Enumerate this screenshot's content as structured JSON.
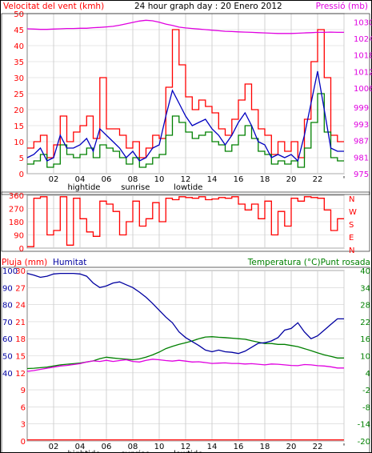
{
  "colors": {
    "background": "#ffffff",
    "grid": "#d0d0d0",
    "wind_gust": "#ff0000",
    "wind_avg": "#008000",
    "wind_mean": "#0000c0",
    "pressure": "#e000e0",
    "direction": "#ff0000",
    "rain": "#ff0000",
    "humidity": "#0000a0",
    "temperature": "#008000",
    "dewpoint": "#e000e0"
  },
  "chart_data": [
    {
      "type": "line",
      "title": "24 hour graph day : 20 Enero 2012",
      "ylabel_left": "Velocitat del vent (kmh)",
      "ylabel_right": "Pressió (mb)",
      "x_ticks": [
        "02",
        "04",
        "06",
        "08",
        "10",
        "12",
        "14",
        "16",
        "18",
        "20",
        "22",
        "'"
      ],
      "x_annotations": [
        "hightide",
        "sunrise",
        "lowtide"
      ],
      "yticks_left": [
        "0",
        "5",
        "10",
        "15",
        "20",
        "25",
        "30",
        "35",
        "40",
        "45",
        "50"
      ],
      "yticks_right": [
        "975",
        "981",
        "987",
        "993",
        "999",
        "1006",
        "1012",
        "1018",
        "1024",
        "1030"
      ],
      "ylim_left": [
        0,
        50
      ],
      "ylim_right": [
        975,
        1033
      ],
      "grid": true,
      "x": [
        0,
        0.5,
        1,
        1.5,
        2,
        2.5,
        3,
        3.5,
        4,
        4.5,
        5,
        5.5,
        6,
        6.5,
        7,
        7.5,
        8,
        8.5,
        9,
        9.5,
        10,
        10.5,
        11,
        11.5,
        12,
        12.5,
        13,
        13.5,
        14,
        14.5,
        15,
        15.5,
        16,
        16.5,
        17,
        17.5,
        18,
        18.5,
        19,
        19.5,
        20,
        20.5,
        21,
        21.5,
        22,
        22.5,
        23,
        23.5
      ],
      "series": [
        {
          "color_key": "wind_gust",
          "axis": "left",
          "values": [
            8,
            10,
            12,
            5,
            9,
            18,
            10,
            13,
            15,
            18,
            11,
            30,
            14,
            14,
            12,
            8,
            10,
            5,
            8,
            12,
            11,
            27,
            45,
            34,
            24,
            20,
            23,
            21,
            19,
            14,
            12,
            17,
            23,
            28,
            20,
            14,
            12,
            6,
            10,
            7,
            10,
            5,
            17,
            35,
            45,
            30,
            12,
            10
          ]
        },
        {
          "color_key": "wind_mean",
          "axis": "left",
          "values": [
            5,
            6,
            8,
            4,
            5,
            12,
            8,
            8,
            9,
            11,
            7,
            14,
            12,
            10,
            8,
            5,
            7,
            4,
            5,
            8,
            9,
            18,
            26,
            22,
            18,
            15,
            16,
            17,
            14,
            12,
            9,
            12,
            16,
            19,
            15,
            10,
            9,
            5,
            6,
            5,
            6,
            4,
            12,
            22,
            32,
            20,
            8,
            7
          ]
        },
        {
          "color_key": "wind_avg",
          "axis": "left",
          "values": [
            3,
            4,
            6,
            2,
            3,
            9,
            6,
            5,
            6,
            8,
            5,
            9,
            8,
            7,
            5,
            3,
            5,
            2,
            3,
            5,
            6,
            12,
            18,
            16,
            13,
            11,
            12,
            13,
            10,
            9,
            7,
            9,
            12,
            15,
            11,
            7,
            6,
            3,
            4,
            3,
            4,
            2,
            8,
            16,
            25,
            13,
            5,
            4
          ]
        },
        {
          "color_key": "pressure",
          "axis": "right",
          "values": [
            1027.5,
            1027.4,
            1027.3,
            1027.3,
            1027.4,
            1027.5,
            1027.6,
            1027.6,
            1027.7,
            1027.7,
            1027.9,
            1028.0,
            1028.2,
            1028.4,
            1028.8,
            1029.3,
            1029.8,
            1030.3,
            1030.6,
            1030.4,
            1029.9,
            1029.2,
            1028.7,
            1028.1,
            1027.8,
            1027.6,
            1027.4,
            1027.2,
            1027.0,
            1026.8,
            1026.6,
            1026.5,
            1026.4,
            1026.3,
            1026.2,
            1026.1,
            1026.0,
            1025.9,
            1025.8,
            1025.8,
            1025.8,
            1025.9,
            1026.0,
            1026.1,
            1026.2,
            1026.2,
            1026.3,
            1026.2
          ]
        }
      ]
    },
    {
      "type": "line",
      "yticks_left": [
        "0",
        "90",
        "180",
        "270",
        "360"
      ],
      "compass": [
        "N",
        "W",
        "S",
        "E",
        "N"
      ],
      "ylim": [
        0,
        360
      ],
      "series": [
        {
          "color_key": "direction",
          "values": [
            10,
            340,
            350,
            90,
            120,
            350,
            20,
            340,
            200,
            110,
            80,
            320,
            300,
            250,
            90,
            180,
            320,
            150,
            200,
            310,
            180,
            340,
            330,
            350,
            345,
            340,
            350,
            330,
            335,
            345,
            340,
            350,
            300,
            260,
            300,
            200,
            320,
            90,
            250,
            150,
            340,
            320,
            350,
            345,
            340,
            260,
            120,
            200
          ]
        }
      ]
    },
    {
      "type": "line",
      "ylabel_left_rain": "Pluja (mm)",
      "ylabel_left_humidity": "Humitat",
      "ylabel_right": "Temperatura (°C)Punt rosada",
      "yticks_humidity": [
        "100",
        "90",
        "80",
        "70",
        "60",
        "50",
        "40"
      ],
      "yticks_rain": [
        "30",
        "27",
        "24",
        "21",
        "18",
        "15",
        "12",
        "9",
        "6",
        "3",
        "0"
      ],
      "yticks_right": [
        "40",
        "34",
        "28",
        "22",
        "16",
        "10",
        "4",
        "-2",
        "-8",
        "-14",
        "-20"
      ],
      "ylim_left_rain": [
        0,
        30
      ],
      "ylim_right": [
        -20,
        40
      ],
      "series": [
        {
          "color_key": "humidity",
          "axis": "rain",
          "values": [
            29.5,
            29.2,
            28.8,
            29.0,
            29.4,
            29.5,
            29.5,
            29.5,
            29.4,
            29.0,
            27.8,
            27.0,
            27.3,
            27.8,
            28.0,
            27.5,
            27.0,
            26.2,
            25.3,
            24.2,
            23.0,
            21.8,
            20.8,
            19.2,
            18.2,
            17.5,
            16.8,
            16.0,
            15.7,
            16.0,
            15.7,
            15.6,
            15.4,
            15.8,
            16.5,
            17.2,
            17.3,
            17.6,
            18.2,
            19.5,
            19.8,
            20.8,
            19.2,
            18.0,
            18.5,
            19.5,
            20.5,
            21.5
          ]
        },
        {
          "color_key": "temperature",
          "axis": "right",
          "values": [
            5.5,
            5.6,
            5.8,
            6.0,
            6.4,
            6.8,
            7.0,
            7.2,
            7.4,
            7.8,
            8.2,
            9.0,
            9.5,
            9.2,
            9.0,
            8.8,
            8.6,
            8.9,
            9.5,
            10.3,
            11.3,
            12.5,
            13.3,
            14.0,
            14.6,
            15.2,
            16.0,
            16.6,
            16.7,
            16.5,
            16.4,
            16.2,
            16.0,
            15.8,
            15.3,
            14.8,
            14.3,
            14.3,
            14.0,
            14.0,
            13.6,
            13.2,
            12.5,
            11.8,
            11.0,
            10.3,
            9.8,
            9.2
          ]
        },
        {
          "color_key": "dewpoint",
          "axis": "right",
          "values": [
            4.5,
            4.8,
            5.2,
            5.6,
            6.0,
            6.4,
            6.6,
            6.9,
            7.2,
            7.8,
            8.2,
            8.0,
            8.4,
            8.0,
            8.3,
            8.6,
            8.0,
            7.8,
            8.4,
            8.8,
            8.6,
            8.3,
            8.1,
            8.4,
            8.1,
            7.8,
            7.9,
            7.6,
            7.3,
            7.4,
            7.5,
            7.3,
            7.3,
            7.1,
            7.2,
            7.0,
            6.8,
            7.1,
            7.0,
            6.8,
            6.6,
            6.5,
            6.9,
            6.8,
            6.5,
            6.4,
            6.1,
            5.7
          ]
        },
        {
          "color_key": "rain",
          "axis": "rain",
          "values": [
            0.2,
            0.2,
            0.2,
            0.2,
            0.2,
            0.2,
            0.2,
            0.2,
            0.2,
            0.2,
            0.2,
            0.2,
            0.2,
            0.2,
            0.2,
            0.2,
            0.2,
            0.2,
            0.2,
            0.2,
            0.2,
            0.2,
            0.2,
            0.2,
            0.2,
            0.2,
            0.2,
            0.2,
            0.2,
            0.2,
            0.2,
            0.2,
            0.2,
            0.2,
            0.2,
            0.2,
            0.2,
            0.2,
            0.2,
            0.2,
            0.2,
            0.2,
            0.2,
            0.2,
            0.2,
            0.2,
            0.2,
            0.2
          ]
        }
      ]
    }
  ]
}
